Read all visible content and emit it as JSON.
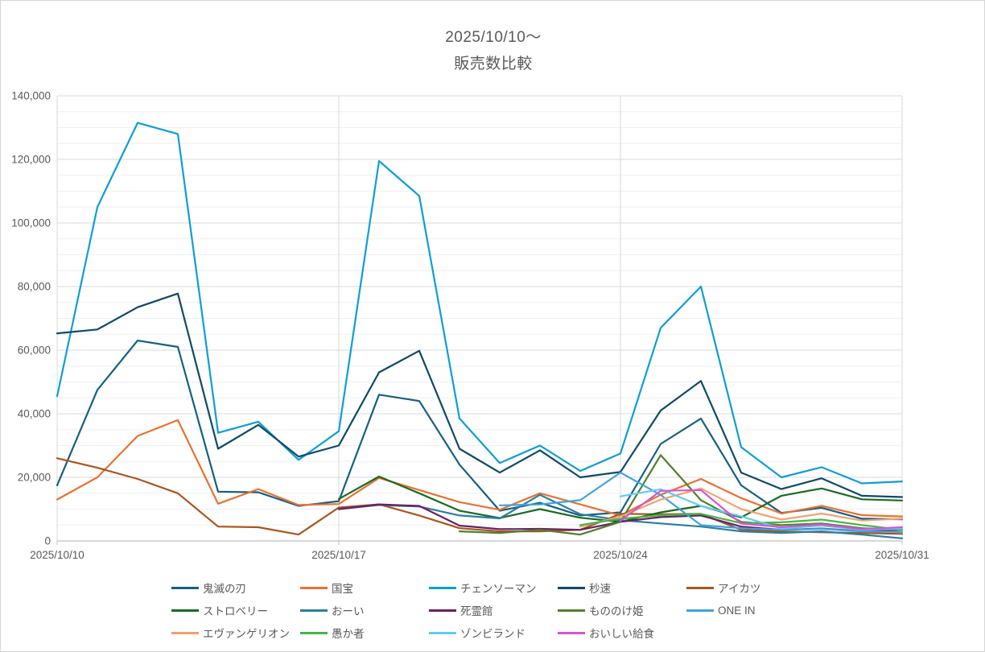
{
  "title": {
    "line1": "2025/10/10～",
    "line2": "販売数比較"
  },
  "chart_data": {
    "type": "line",
    "x": [
      "2025/10/10",
      "2025/10/11",
      "2025/10/12",
      "2025/10/13",
      "2025/10/14",
      "2025/10/15",
      "2025/10/16",
      "2025/10/17",
      "2025/10/18",
      "2025/10/19",
      "2025/10/20",
      "2025/10/21",
      "2025/10/22",
      "2025/10/23",
      "2025/10/24",
      "2025/10/25",
      "2025/10/26",
      "2025/10/27",
      "2025/10/28",
      "2025/10/29",
      "2025/10/30",
      "2025/10/31"
    ],
    "x_axis_tick_labels": [
      "2025/10/10",
      "2025/10/17",
      "2025/10/24",
      "2025/10/31"
    ],
    "x_axis_tick_days": [
      0,
      7,
      14,
      21
    ],
    "y_axis": {
      "min": 0,
      "max": 140000,
      "major_step": 20000,
      "minor_step": 5000,
      "tick_labels": [
        "0",
        "20,000",
        "40,000",
        "60,000",
        "80,000",
        "100,000",
        "120,000",
        "140,000"
      ]
    },
    "grid": true,
    "legend_position": "bottom",
    "series": [
      {
        "name": "鬼滅の刃",
        "color": "#156082",
        "values": [
          17500,
          47500,
          63000,
          61000,
          15500,
          15300,
          11000,
          12500,
          46000,
          44000,
          24000,
          9500,
          12000,
          8000,
          9000,
          30500,
          38500,
          17500,
          8800,
          10400,
          7000,
          6800
        ]
      },
      {
        "name": "国宝",
        "color": "#E97132",
        "values": [
          13000,
          20000,
          33000,
          38000,
          11700,
          16300,
          11300,
          11600,
          19800,
          16000,
          12200,
          9800,
          15000,
          11500,
          8000,
          14500,
          19500,
          13500,
          8600,
          11000,
          8100,
          7700
        ]
      },
      {
        "name": "チェンソーマン",
        "color": "#0F9ED5",
        "values": [
          45500,
          105000,
          131500,
          128000,
          34000,
          37500,
          25500,
          34500,
          119500,
          108500,
          38500,
          24500,
          30000,
          22000,
          27500,
          67000,
          80000,
          29500,
          20000,
          23200,
          18100,
          18700
        ]
      },
      {
        "name": "秒速",
        "color": "#0E4A66",
        "values": [
          65300,
          66500,
          73500,
          77800,
          29000,
          36500,
          26500,
          30000,
          53000,
          59800,
          29000,
          21500,
          28500,
          20000,
          21700,
          41000,
          50300,
          21500,
          16300,
          19700,
          14200,
          13800
        ]
      },
      {
        "name": "アイカツ",
        "color": "#A9551E",
        "values": [
          26000,
          23000,
          19500,
          15000,
          4500,
          4300,
          2000,
          10500,
          11500,
          8000,
          4000,
          3000,
          3000,
          3500,
          8500,
          8400,
          8500,
          3500,
          3000,
          2700,
          2500,
          2200
        ]
      },
      {
        "name": "ストロベリー",
        "color": "#196B24",
        "values": [
          null,
          null,
          null,
          null,
          null,
          null,
          null,
          13200,
          20250,
          15000,
          9500,
          7200,
          10000,
          7300,
          6000,
          9000,
          11000,
          7400,
          14200,
          16500,
          13100,
          12700
        ]
      },
      {
        "name": "おーい",
        "color": "#2D7D9F",
        "values": [
          null,
          null,
          null,
          null,
          null,
          null,
          null,
          10000,
          11300,
          10800,
          8000,
          7100,
          14500,
          8400,
          6500,
          5500,
          4500,
          3000,
          2500,
          3000,
          2000,
          800
        ]
      },
      {
        "name": "死霊館",
        "color": "#6B2064",
        "values": [
          null,
          null,
          null,
          null,
          null,
          null,
          null,
          10000,
          11500,
          11000,
          4800,
          3700,
          3800,
          3500,
          6000,
          7500,
          8000,
          4500,
          3500,
          3900,
          3100,
          3500
        ]
      },
      {
        "name": "もののけ姫",
        "color": "#527F2F",
        "values": [
          null,
          null,
          null,
          null,
          null,
          null,
          null,
          null,
          null,
          null,
          3000,
          2500,
          3500,
          2000,
          6000,
          27000,
          12800,
          6000,
          5000,
          5500,
          4000,
          3500
        ]
      },
      {
        "name": "ONE IN",
        "color": "#3FA3DC",
        "values": [
          null,
          null,
          null,
          null,
          null,
          null,
          null,
          null,
          null,
          null,
          null,
          11200,
          11500,
          12800,
          21500,
          14450,
          4950,
          4000,
          3500,
          3800,
          3000,
          2800
        ]
      },
      {
        "name": "エヴァンゲリオン",
        "color": "#F2A16F",
        "values": [
          null,
          null,
          null,
          null,
          null,
          null,
          null,
          null,
          null,
          null,
          null,
          null,
          null,
          4500,
          7700,
          13000,
          16500,
          10000,
          6700,
          8600,
          6400,
          7000
        ]
      },
      {
        "name": "愚か者",
        "color": "#42B649",
        "values": [
          null,
          null,
          null,
          null,
          null,
          null,
          null,
          null,
          null,
          null,
          null,
          null,
          null,
          5000,
          7000,
          8050,
          8500,
          5600,
          5850,
          6700,
          5000,
          3500
        ]
      },
      {
        "name": "ゾンビランド",
        "color": "#61CBF3",
        "values": [
          null,
          null,
          null,
          null,
          null,
          null,
          null,
          null,
          null,
          null,
          null,
          null,
          null,
          null,
          14000,
          16250,
          11000,
          7700,
          3900,
          4800,
          3500,
          3900
        ]
      },
      {
        "name": "おいしい給食",
        "color": "#D455D0",
        "values": [
          null,
          null,
          null,
          null,
          null,
          null,
          null,
          null,
          null,
          null,
          null,
          null,
          null,
          null,
          6350,
          15750,
          16000,
          5450,
          4350,
          5200,
          3700,
          4300
        ]
      }
    ]
  },
  "legend": {
    "rows": [
      [
        0,
        1,
        2,
        3,
        4
      ],
      [
        5,
        6,
        7,
        8,
        9
      ],
      [
        10,
        11,
        12,
        13
      ]
    ]
  }
}
